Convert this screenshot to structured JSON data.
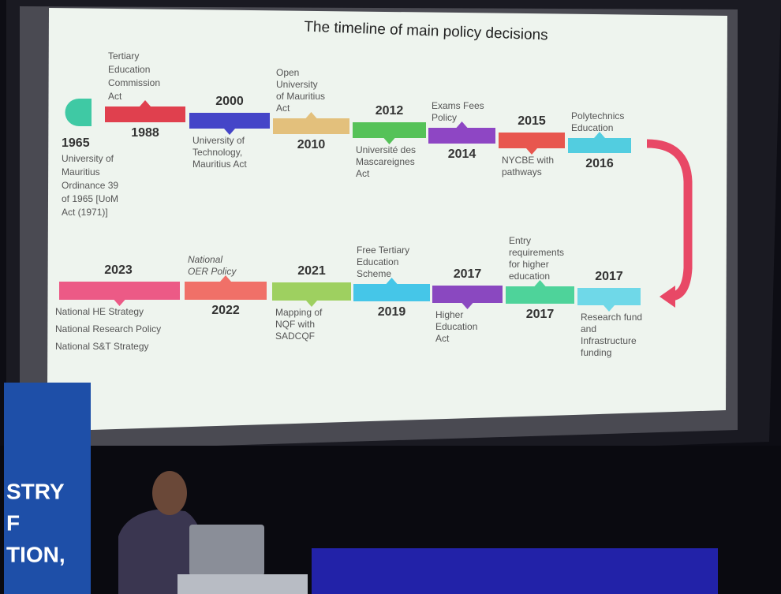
{
  "slide_title": "The timeline of main policy decisions",
  "timeline_top": [
    {
      "year": "1965",
      "lines": [
        "University of",
        "Mauritius",
        "Ordinance 39",
        "of 1965 [UoM",
        "Act (1971)]"
      ],
      "color": "#3fc9a4"
    },
    {
      "year": "1988",
      "lines": [
        "Tertiary",
        "Education",
        "Commission",
        "Act"
      ],
      "color": "#e0404e"
    },
    {
      "year": "2000",
      "lines": [
        "University of",
        "Technology,",
        "Mauritius Act"
      ],
      "color": "#4545c8"
    },
    {
      "year": "2010",
      "lines": [
        "Open",
        "University",
        "of Mauritius",
        "Act"
      ],
      "color": "#e3c07c"
    },
    {
      "year": "2012",
      "lines": [
        "Université des",
        "Mascareignes",
        "Act"
      ],
      "color": "#55c258"
    },
    {
      "year": "2014",
      "lines": [
        "Exams Fees",
        "Policy"
      ],
      "color": "#8e46c4"
    },
    {
      "year": "2015",
      "lines": [
        "NYCBE with",
        "pathways"
      ],
      "color": "#e8564e"
    },
    {
      "year": "2016",
      "lines": [
        "Polytechnics",
        "Education"
      ],
      "color": "#52cde0"
    }
  ],
  "timeline_bottom": [
    {
      "year": "2023",
      "lines": [
        "National HE Strategy",
        "National Research Policy",
        "National S&T Strategy"
      ],
      "color": "#ec5a86"
    },
    {
      "year": "2022",
      "lines": [
        "National",
        "OER Policy"
      ],
      "color": "#f07068"
    },
    {
      "year": "2021",
      "lines": [
        "Mapping of",
        "NQF with",
        "SADCQF"
      ],
      "color": "#9ed060"
    },
    {
      "year": "2019",
      "lines": [
        "Free Tertiary",
        "Education",
        "Scheme"
      ],
      "color": "#45c6e8"
    },
    {
      "year": "2017",
      "lines": [
        "Higher",
        "Education",
        "Act"
      ],
      "color": "#8a48c0"
    },
    {
      "year": "2017",
      "lines": [
        "Entry",
        "requirements",
        "for higher",
        "education"
      ],
      "color": "#4ed39a"
    },
    {
      "year": "2017",
      "lines": [
        "Research fund",
        "and",
        "Infrastructure",
        "funding"
      ],
      "color": "#6fd8e8"
    }
  ],
  "banner": [
    "STRY",
    "F",
    "TION,"
  ]
}
